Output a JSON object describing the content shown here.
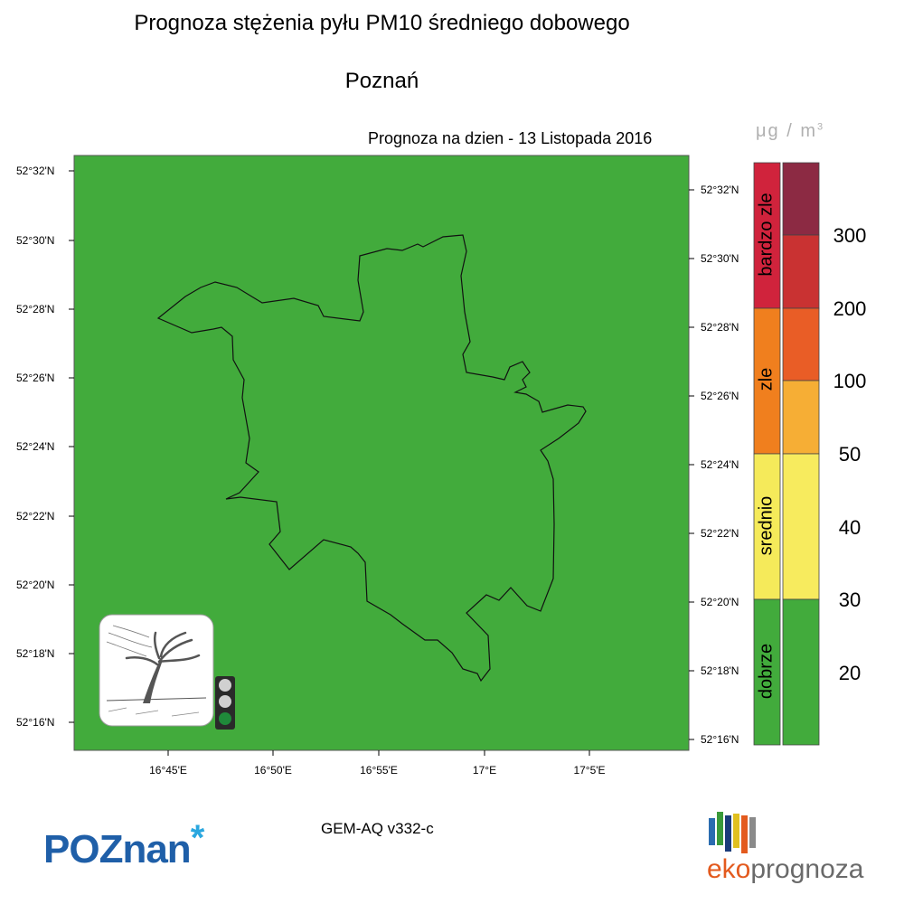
{
  "header": {
    "title": "Prognoza stężenia pyłu PM10 średniego dobowego",
    "city": "Poznań",
    "forecast_date": "Prognoza na dzien -  13 Listopada 2016"
  },
  "map": {
    "background_color": "#42ab3c",
    "lat_labels_left": [
      "52°32'N",
      "52°30'N",
      "52°28'N",
      "52°26'N",
      "52°24'N",
      "52°22'N",
      "52°20'N",
      "52°18'N",
      "52°16'N"
    ],
    "lat_labels_right": [
      "52°32'N",
      "52°30'N",
      "52°28'N",
      "52°26'N",
      "52°24'N",
      "52°22'N",
      "52°20'N",
      "52°18'N",
      "52°16'N"
    ],
    "lon_labels": [
      "16°45'E",
      "16°50'E",
      "16°55'E",
      "17°E",
      "17°5'E"
    ],
    "traffic_light": {
      "active": "green",
      "off_color": "#d0d0d0",
      "on_color": "#1f8a3a"
    },
    "tree_icon": "windy-tree-icon"
  },
  "legend": {
    "unit_base": "μg / m",
    "unit_exp": "3",
    "categories": [
      {
        "label": "bardzo zle",
        "color": "#d0233c"
      },
      {
        "label": "zle",
        "color": "#f07f1e"
      },
      {
        "label": "srednio",
        "color": "#f5ea5a"
      },
      {
        "label": "dobrze",
        "color": "#42ab3c"
      }
    ],
    "scale_colors": [
      "#8c2a43",
      "#c93232",
      "#e95d26",
      "#f6ae35",
      "#f7eb5e",
      "#42ab3c"
    ],
    "scale_values": [
      "300",
      "200",
      "100",
      "50",
      "40",
      "30",
      "20"
    ]
  },
  "footer": {
    "model": "GEM-AQ v332-c",
    "poznan_logo": "POZnan",
    "poznan_star": "*",
    "eko_part1": "eko",
    "eko_part2": "prognoza",
    "eko_bar_colors": [
      "#2b6cb0",
      "#3a9a3a",
      "#e0c020",
      "#e35a1e",
      "#8a8a8a"
    ]
  }
}
